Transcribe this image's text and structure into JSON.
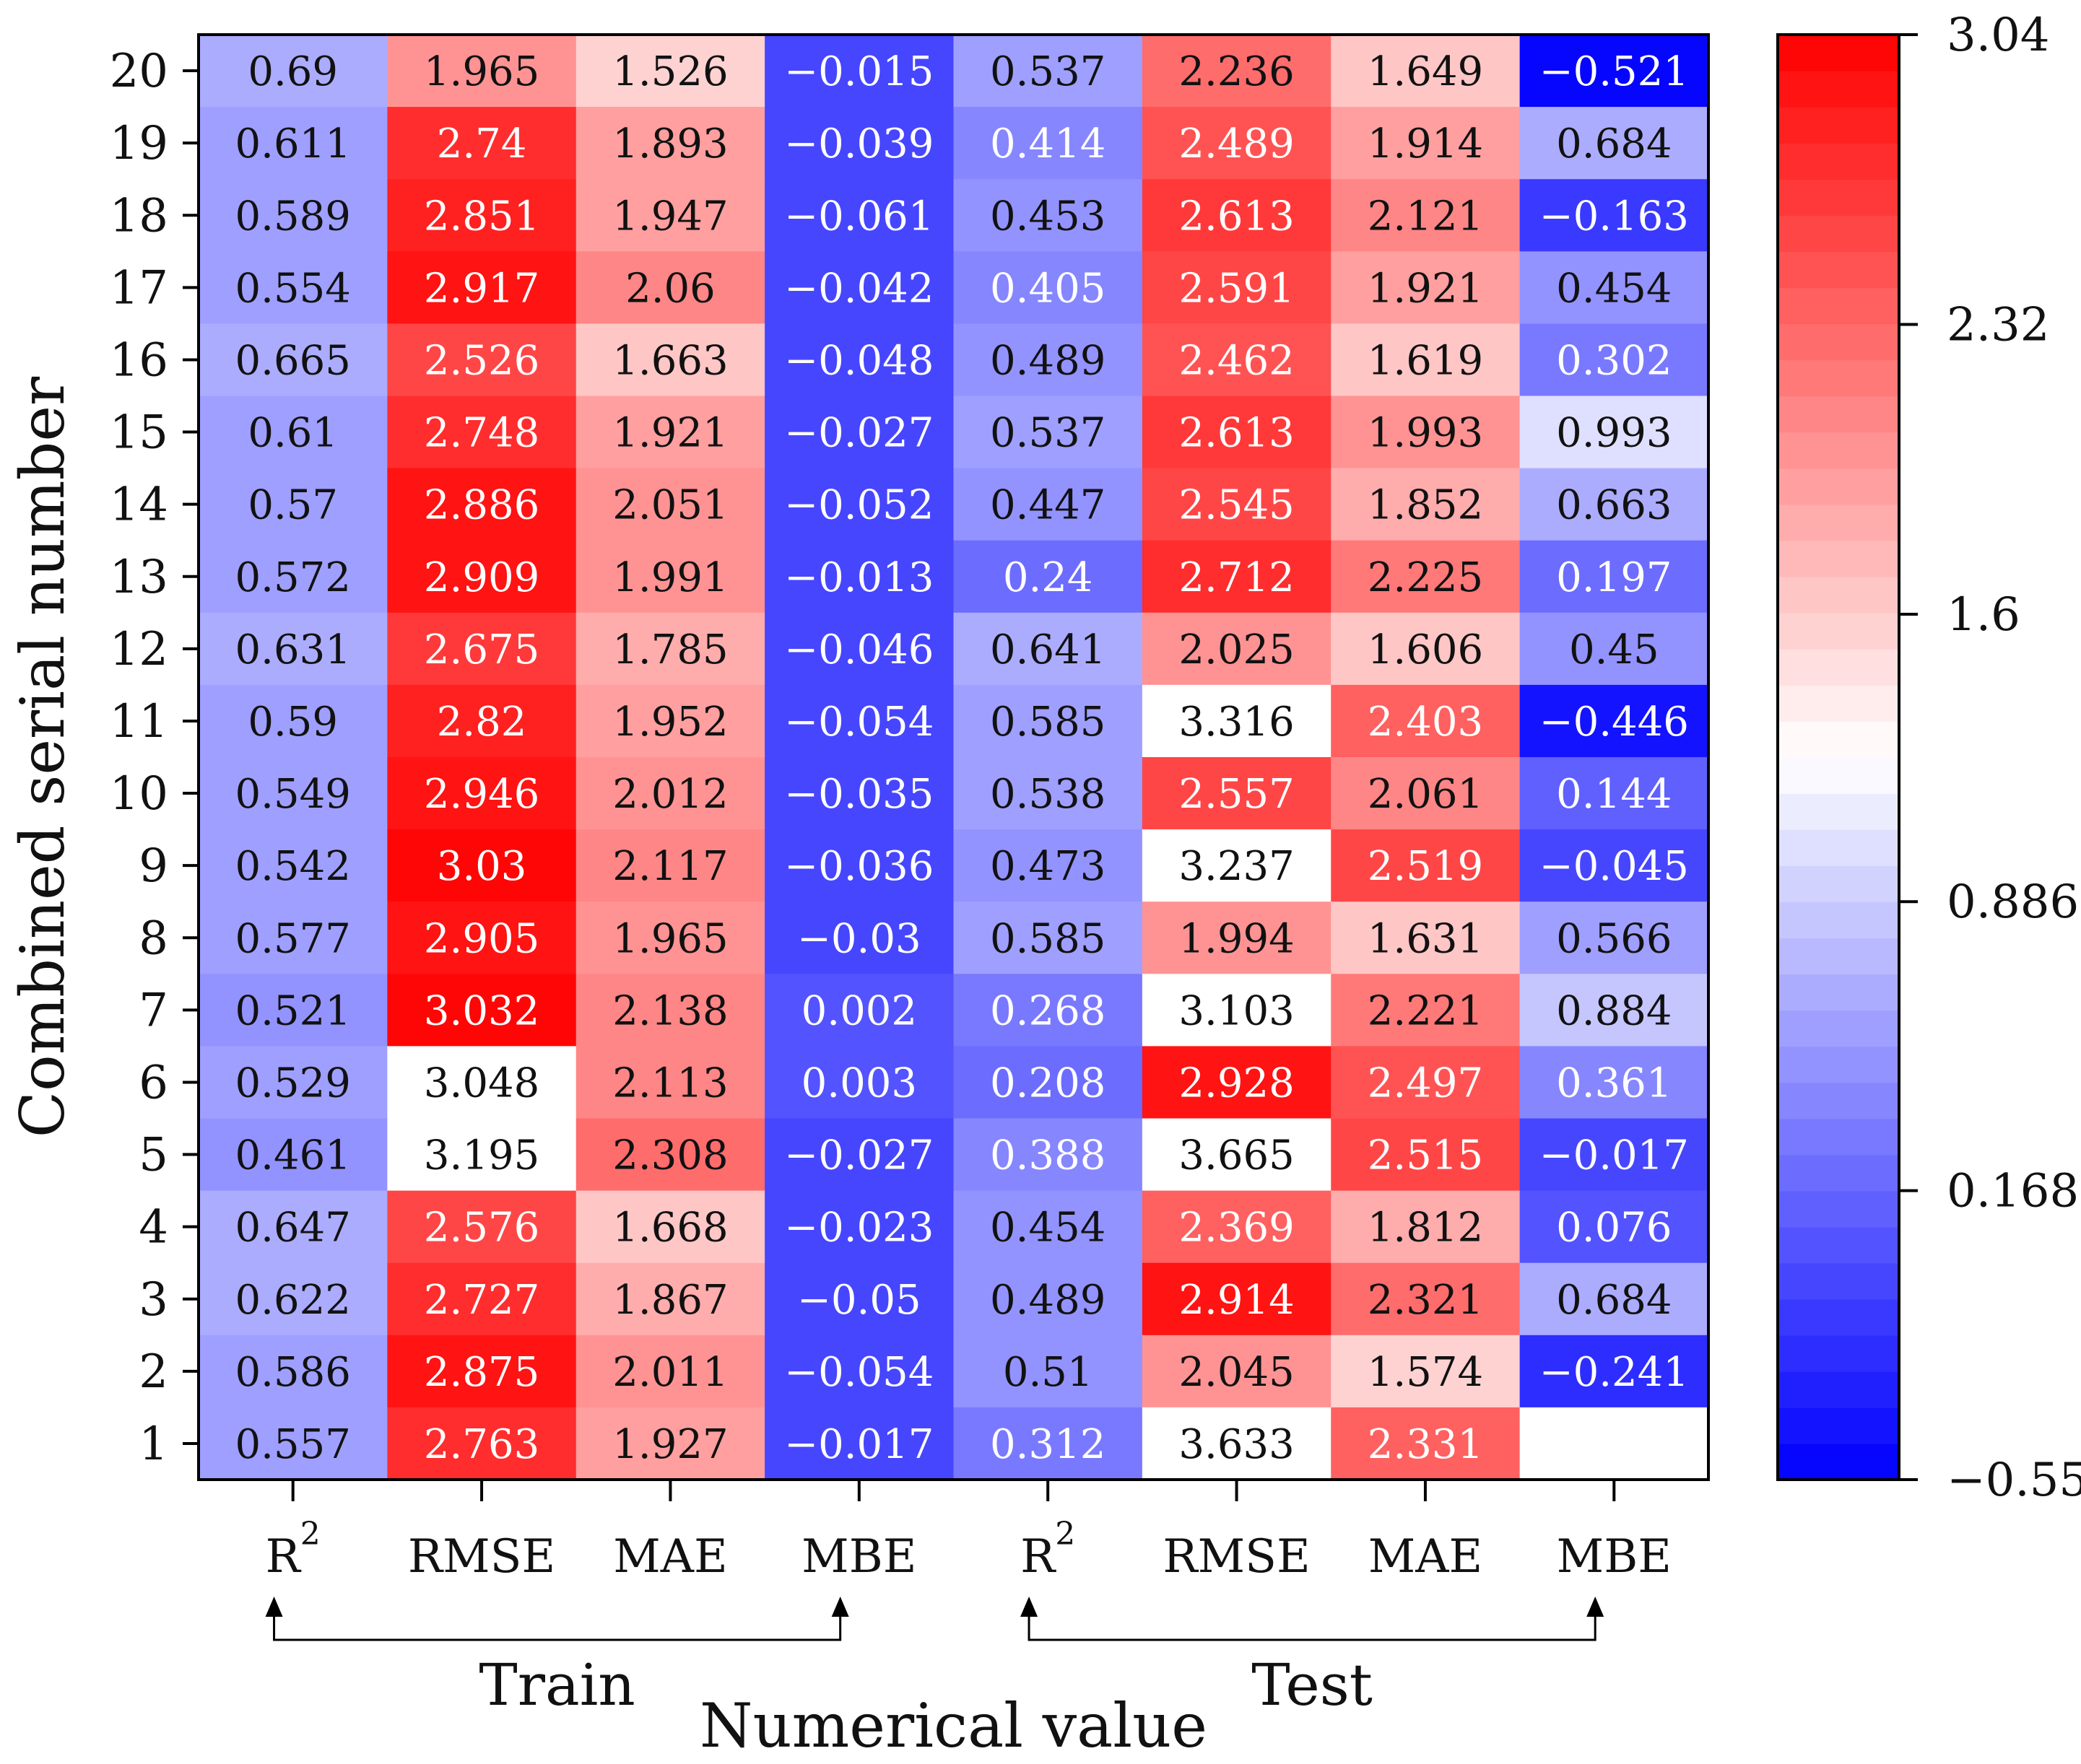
{
  "chart_data": {
    "type": "heatmap",
    "xlabel": "Numerical value",
    "ylabel": "Combined serial number",
    "columns": [
      {
        "label": "R",
        "sup": "2"
      },
      {
        "label": "RMSE",
        "sup": ""
      },
      {
        "label": "MAE",
        "sup": ""
      },
      {
        "label": "MBE",
        "sup": ""
      },
      {
        "label": "R",
        "sup": "2"
      },
      {
        "label": "RMSE",
        "sup": ""
      },
      {
        "label": "MAE",
        "sup": ""
      },
      {
        "label": "MBE",
        "sup": ""
      }
    ],
    "groups": [
      {
        "label": "Train",
        "from": 0,
        "to": 3
      },
      {
        "label": "Test",
        "from": 4,
        "to": 7
      }
    ],
    "rows": [
      "20",
      "19",
      "18",
      "17",
      "16",
      "15",
      "14",
      "13",
      "12",
      "11",
      "10",
      "9",
      "8",
      "7",
      "6",
      "5",
      "4",
      "3",
      "2",
      "1"
    ],
    "values": [
      [
        "0.69",
        "1.965",
        "1.526",
        "−0.015",
        "0.537",
        "2.236",
        "1.649",
        "−0.521"
      ],
      [
        "0.611",
        "2.74",
        "1.893",
        "−0.039",
        "0.414",
        "2.489",
        "1.914",
        "0.684"
      ],
      [
        "0.589",
        "2.851",
        "1.947",
        "−0.061",
        "0.453",
        "2.613",
        "2.121",
        "−0.163"
      ],
      [
        "0.554",
        "2.917",
        "2.06",
        "−0.042",
        "0.405",
        "2.591",
        "1.921",
        "0.454"
      ],
      [
        "0.665",
        "2.526",
        "1.663",
        "−0.048",
        "0.489",
        "2.462",
        "1.619",
        "0.302"
      ],
      [
        "0.61",
        "2.748",
        "1.921",
        "−0.027",
        "0.537",
        "2.613",
        "1.993",
        "0.993"
      ],
      [
        "0.57",
        "2.886",
        "2.051",
        "−0.052",
        "0.447",
        "2.545",
        "1.852",
        "0.663"
      ],
      [
        "0.572",
        "2.909",
        "1.991",
        "−0.013",
        "0.24",
        "2.712",
        "2.225",
        "0.197"
      ],
      [
        "0.631",
        "2.675",
        "1.785",
        "−0.046",
        "0.641",
        "2.025",
        "1.606",
        "0.45"
      ],
      [
        "0.59",
        "2.82",
        "1.952",
        "−0.054",
        "0.585",
        "3.316",
        "2.403",
        "−0.446"
      ],
      [
        "0.549",
        "2.946",
        "2.012",
        "−0.035",
        "0.538",
        "2.557",
        "2.061",
        "0.144"
      ],
      [
        "0.542",
        "3.03",
        "2.117",
        "−0.036",
        "0.473",
        "3.237",
        "2.519",
        "−0.045"
      ],
      [
        "0.577",
        "2.905",
        "1.965",
        "−0.03",
        "0.585",
        "1.994",
        "1.631",
        "0.566"
      ],
      [
        "0.521",
        "3.032",
        "2.138",
        "0.002",
        "0.268",
        "3.103",
        "2.221",
        "0.884"
      ],
      [
        "0.529",
        "3.048",
        "2.113",
        "0.003",
        "0.208",
        "2.928",
        "2.497",
        "0.361"
      ],
      [
        "0.461",
        "3.195",
        "2.308",
        "−0.027",
        "0.388",
        "3.665",
        "2.515",
        "−0.017"
      ],
      [
        "0.647",
        "2.576",
        "1.668",
        "−0.023",
        "0.454",
        "2.369",
        "1.812",
        "0.076"
      ],
      [
        "0.622",
        "2.727",
        "1.867",
        "−0.05",
        "0.489",
        "2.914",
        "2.321",
        "0.684"
      ],
      [
        "0.586",
        "2.875",
        "2.011",
        "−0.054",
        "0.51",
        "2.045",
        "1.574",
        "−0.241"
      ],
      [
        "0.557",
        "2.763",
        "1.927",
        "−0.017",
        "0.312",
        "3.633",
        "2.331",
        ""
      ]
    ],
    "colorbar": {
      "min": -0.55,
      "max": 3.04,
      "ticks": [
        "3.04",
        "2.32",
        "1.6",
        "0.886",
        "0.168",
        "−0.55"
      ],
      "colors": {
        "low": "#0000ff",
        "mid": "#ffffff",
        "high": "#ff0000"
      },
      "steps": 40
    }
  }
}
